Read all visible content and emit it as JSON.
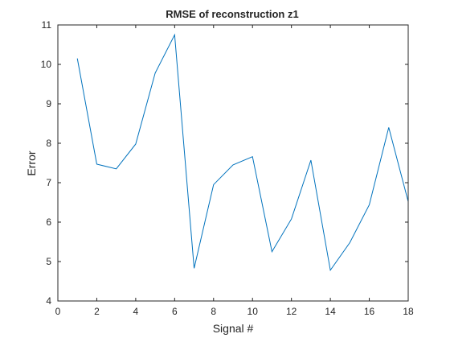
{
  "chart_data": {
    "type": "line",
    "title": "RMSE of reconstruction z1",
    "xlabel": "Signal #",
    "ylabel": "Error",
    "xlim": [
      0,
      18
    ],
    "ylim": [
      4,
      11
    ],
    "xticks": [
      0,
      2,
      4,
      6,
      8,
      10,
      12,
      14,
      16,
      18
    ],
    "yticks": [
      4,
      5,
      6,
      7,
      8,
      9,
      10,
      11
    ],
    "grid": false,
    "series": [
      {
        "color": "#0072bd",
        "x": [
          1,
          2,
          3,
          4,
          5,
          6,
          7,
          8,
          9,
          10,
          11,
          12,
          13,
          14,
          15,
          16,
          17,
          18
        ],
        "y": [
          10.15,
          7.47,
          7.35,
          7.98,
          9.78,
          10.75,
          4.83,
          6.95,
          7.45,
          7.66,
          5.25,
          6.08,
          7.57,
          4.78,
          5.48,
          6.44,
          8.4,
          6.52
        ]
      }
    ],
    "axis_color": "#262626"
  }
}
